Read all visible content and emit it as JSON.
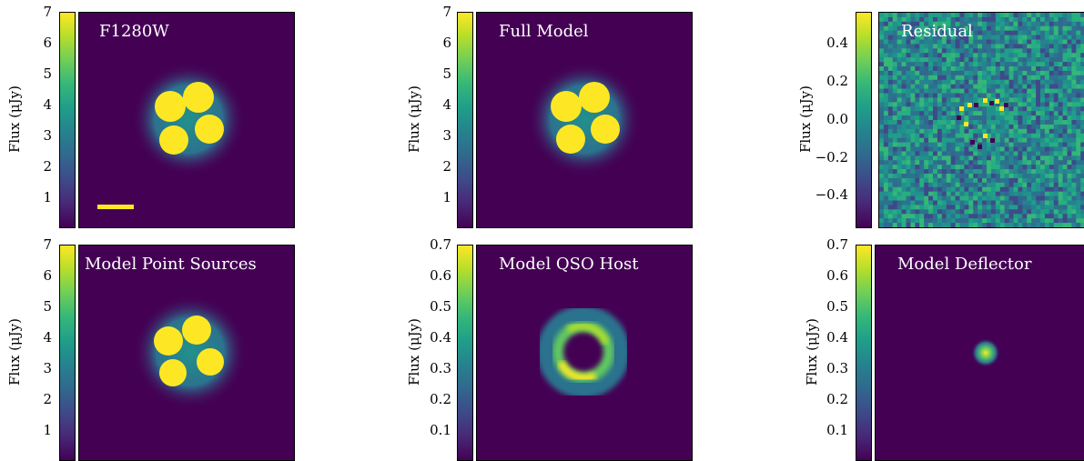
{
  "colorbar_label": "Flux (μJy)",
  "panels": [
    {
      "title": "F1280W",
      "ticks": [
        "1",
        "2",
        "3",
        "4",
        "5",
        "6",
        "7"
      ]
    },
    {
      "title": "Full Model",
      "ticks": [
        "1",
        "2",
        "3",
        "4",
        "5",
        "6",
        "7"
      ]
    },
    {
      "title": "Residual",
      "ticks": [
        "−0.4",
        "−0.2",
        "0.0",
        "0.2",
        "0.4"
      ]
    },
    {
      "title": "Model Point Sources",
      "ticks": [
        "1",
        "2",
        "3",
        "4",
        "5",
        "6",
        "7"
      ]
    },
    {
      "title": "Model QSO Host",
      "ticks": [
        "0.1",
        "0.2",
        "0.3",
        "0.4",
        "0.5",
        "0.6",
        "0.7"
      ]
    },
    {
      "title": "Model Deflector",
      "ticks": [
        "0.1",
        "0.2",
        "0.3",
        "0.4",
        "0.5",
        "0.6",
        "0.7"
      ]
    }
  ],
  "colors": {
    "viridis_low": "#440154",
    "viridis_mid": "#21918c",
    "viridis_high": "#fde725"
  }
}
